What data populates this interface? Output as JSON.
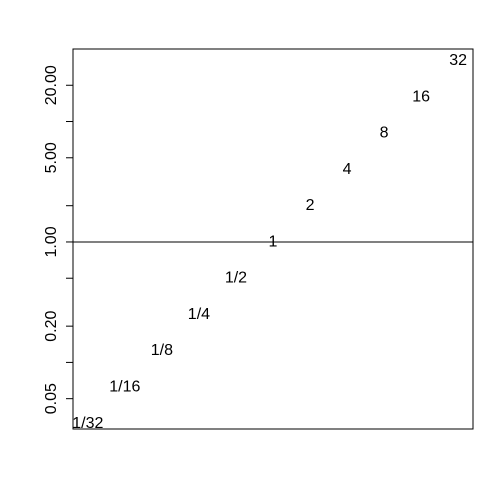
{
  "chart_data": {
    "type": "scatter",
    "title": "",
    "xlabel": "",
    "ylabel": "",
    "y_scale": "log",
    "x_axis_shown": false,
    "grid": false,
    "legend": "none",
    "ylim": [
      0.028,
      40
    ],
    "xlim": [
      0.6,
      11.4
    ],
    "y_ticks": [
      0.05,
      0.1,
      0.2,
      0.5,
      1,
      2,
      5,
      10,
      20
    ],
    "y_tick_labels": [
      "0.05",
      "",
      "0.20",
      "",
      "1.00",
      "",
      "5.00",
      "",
      "20.00"
    ],
    "reference_line": {
      "y": 1
    },
    "points": [
      {
        "x": 1,
        "y": 0.03125,
        "label": "1/32"
      },
      {
        "x": 2,
        "y": 0.0625,
        "label": "1/16"
      },
      {
        "x": 3,
        "y": 0.125,
        "label": "1/8"
      },
      {
        "x": 4,
        "y": 0.25,
        "label": "1/4"
      },
      {
        "x": 5,
        "y": 0.5,
        "label": "1/2"
      },
      {
        "x": 6,
        "y": 1,
        "label": "1"
      },
      {
        "x": 7,
        "y": 2,
        "label": "2"
      },
      {
        "x": 8,
        "y": 4,
        "label": "4"
      },
      {
        "x": 9,
        "y": 8,
        "label": "8"
      },
      {
        "x": 10,
        "y": 16,
        "label": "16"
      },
      {
        "x": 11,
        "y": 32,
        "label": "32"
      }
    ]
  }
}
